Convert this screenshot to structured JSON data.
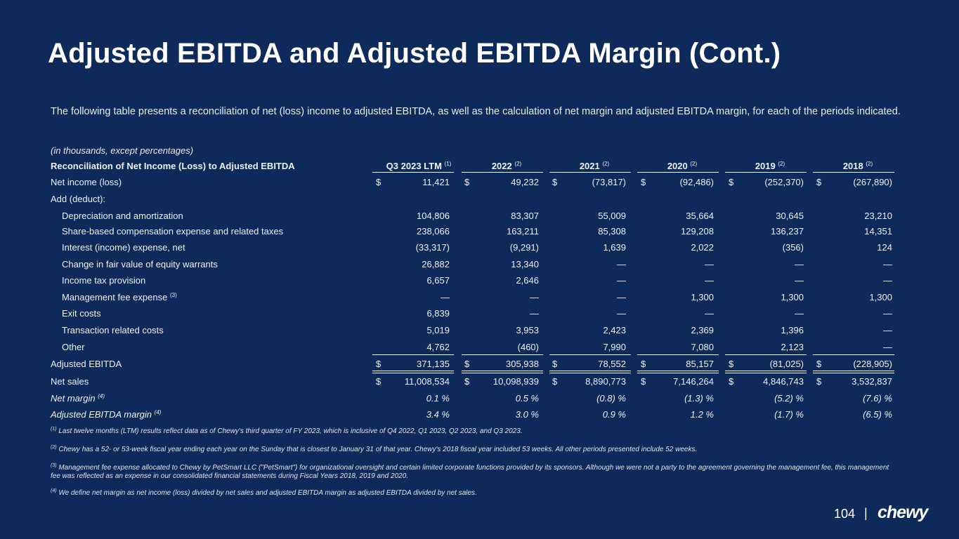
{
  "title": "Adjusted EBITDA and Adjusted EBITDA Margin (Cont.)",
  "intro": "The following table presents a reconciliation of net (loss) income to adjusted EBITDA, as well as the calculation of net margin and adjusted EBITDA margin, for each of the periods indicated.",
  "units_note": "(in thousands, except percentages)",
  "table": {
    "header_label": "Reconciliation of Net Income (Loss) to Adjusted EBITDA",
    "columns": [
      {
        "label": "Q3 2023 LTM",
        "note": "(1)"
      },
      {
        "label": "2022",
        "note": "(2)"
      },
      {
        "label": "2021",
        "note": "(2)"
      },
      {
        "label": "2020",
        "note": "(2)"
      },
      {
        "label": "2019",
        "note": "(2)"
      },
      {
        "label": "2018",
        "note": "(2)"
      }
    ],
    "currency_symbol": "$",
    "rows": {
      "net_income": {
        "label": "Net income (loss)",
        "values": [
          "11,421",
          "49,232",
          "(73,817)",
          "(92,486)",
          "(252,370)",
          "(267,890)"
        ]
      },
      "add_deduct": {
        "label": "Add (deduct):"
      },
      "depreciation": {
        "label": "Depreciation and amortization",
        "values": [
          "104,806",
          "83,307",
          "55,009",
          "35,664",
          "30,645",
          "23,210"
        ]
      },
      "sbc": {
        "label": "Share-based compensation expense and related taxes",
        "values": [
          "238,066",
          "163,211",
          "85,308",
          "129,208",
          "136,237",
          "14,351"
        ]
      },
      "interest": {
        "label": "Interest (income) expense, net",
        "values": [
          "(33,317)",
          "(9,291)",
          "1,639",
          "2,022",
          "(356)",
          "124"
        ]
      },
      "warrants": {
        "label": "Change in fair value of equity warrants",
        "values": [
          "26,882",
          "13,340",
          "—",
          "—",
          "—",
          "—"
        ]
      },
      "income_tax": {
        "label": "Income tax provision",
        "values": [
          "6,657",
          "2,646",
          "—",
          "—",
          "—",
          "—"
        ]
      },
      "mgmt_fee": {
        "label": "Management fee expense",
        "note": "(3)",
        "values": [
          "—",
          "—",
          "—",
          "1,300",
          "1,300",
          "1,300"
        ]
      },
      "exit_costs": {
        "label": "Exit costs",
        "values": [
          "6,839",
          "—",
          "—",
          "—",
          "—",
          "—"
        ]
      },
      "transaction": {
        "label": "Transaction related costs",
        "values": [
          "5,019",
          "3,953",
          "2,423",
          "2,369",
          "1,396",
          "—"
        ]
      },
      "other": {
        "label": "Other",
        "values": [
          "4,762",
          "(460)",
          "7,990",
          "7,080",
          "2,123",
          "—"
        ]
      },
      "adj_ebitda": {
        "label": "Adjusted EBITDA",
        "values": [
          "371,135",
          "305,938",
          "78,552",
          "85,157",
          "(81,025)",
          "(228,905)"
        ]
      },
      "net_sales": {
        "label": "Net sales",
        "values": [
          "11,008,534",
          "10,098,939",
          "8,890,773",
          "7,146,264",
          "4,846,743",
          "3,532,837"
        ]
      },
      "net_margin": {
        "label": "Net margin",
        "note": "(4)",
        "values": [
          "0.1 %",
          "0.5 %",
          "(0.8) %",
          "(1.3) %",
          "(5.2) %",
          "(7.6) %"
        ]
      },
      "adj_margin": {
        "label": "Adjusted EBITDA margin",
        "note": "(4)",
        "values": [
          "3.4 %",
          "3.0 %",
          "0.9 %",
          "1.2  %",
          "(1.7) %",
          "(6.5) %"
        ]
      }
    }
  },
  "footnotes": [
    {
      "num": "(1)",
      "text": "Last twelve months (LTM) results reflect data as of Chewy's third quarter of FY 2023, which is inclusive of Q4 2022, Q1 2023, Q2 2023, and Q3 2023."
    },
    {
      "num": "(2)",
      "text": "Chewy has a 52- or 53-week fiscal year ending each year on the Sunday that is closest to January 31 of that year. Chewy's 2018 fiscal year included 53 weeks. All other periods presented include 52 weeks."
    },
    {
      "num": "(3)",
      "text": "Management fee expense allocated to Chewy by PetSmart LLC (\"PetSmart\") for organizational oversight and certain limited corporate functions provided by its sponsors. Although we were not a party to the agreement governing the management fee, this management fee was reflected as an expense in our consolidated financial statements during Fiscal Years 2018, 2019 and 2020."
    },
    {
      "num": "(4)",
      "text": "We define net margin as net income (loss) divided by net sales and adjusted EBITDA margin as adjusted EBITDA divided by net sales."
    }
  ],
  "footer": {
    "page_number": "104",
    "separator": "|",
    "logo_text": "chewy"
  }
}
